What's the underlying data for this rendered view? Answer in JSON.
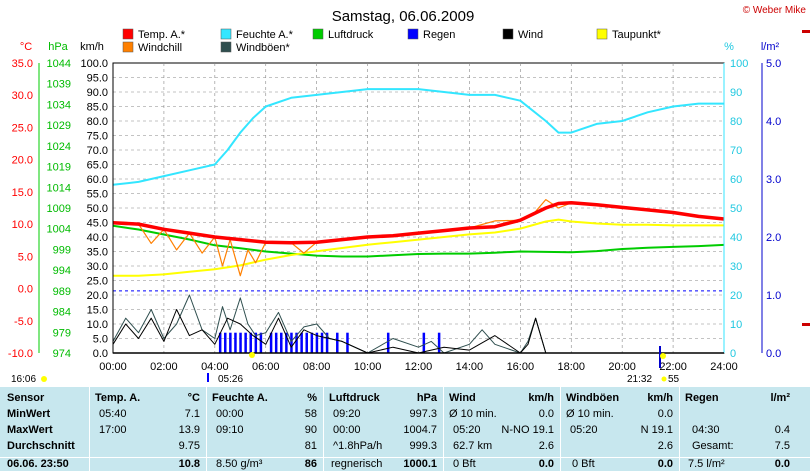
{
  "title": "Samstag, 06.06.2009",
  "copyright": "© Weber Mike",
  "colors": {
    "temp": "#ff0000",
    "windchill": "#ff8000",
    "humidity": "#33e6ff",
    "pressure": "#00cc00",
    "rain": "#0000ff",
    "wind": "#000000",
    "gust": "#2f4f4f",
    "dewpoint": "#ffff00",
    "grid": "#888888"
  },
  "chart_data": {
    "type": "line",
    "x_labels": [
      "00:00",
      "02:00",
      "04:00",
      "06:00",
      "08:00",
      "10:00",
      "12:00",
      "14:00",
      "16:00",
      "18:00",
      "20:00",
      "22:00",
      "24:00"
    ],
    "x_range": [
      0,
      24
    ],
    "axes": {
      "temp": {
        "label": "°C",
        "ticks": [
          "35.0",
          "30.0",
          "25.0",
          "20.0",
          "15.0",
          "10.0",
          "5.0",
          "0.0",
          "-5.0",
          "-10.0"
        ],
        "range": [
          -10,
          35
        ]
      },
      "pressure": {
        "label": "hPa",
        "ticks": [
          "1044",
          "1039",
          "1034",
          "1029",
          "1024",
          "1019",
          "1014",
          "1009",
          "1004",
          "999",
          "994",
          "989",
          "984",
          "979",
          "974"
        ],
        "range": [
          974,
          1044
        ]
      },
      "wind": {
        "label": "km/h",
        "ticks": [
          "100.0",
          "95.0",
          "90.0",
          "85.0",
          "80.0",
          "75.0",
          "70.0",
          "65.0",
          "60.0",
          "55.0",
          "50.0",
          "45.0",
          "40.0",
          "35.0",
          "30.0",
          "25.0",
          "20.0",
          "15.0",
          "10.0",
          "5.0",
          "0.0"
        ],
        "range": [
          0,
          100
        ]
      },
      "humidity": {
        "label": "%",
        "ticks": [
          "100",
          "90",
          "80",
          "70",
          "60",
          "50",
          "40",
          "30",
          "20",
          "10",
          "0"
        ],
        "range": [
          0,
          100
        ]
      },
      "rain": {
        "label": "l/m²",
        "ticks": [
          "5.0",
          "4.0",
          "3.0",
          "2.0",
          "1.0",
          "0.0"
        ],
        "range": [
          0,
          5
        ]
      }
    },
    "legend": [
      {
        "name": "Temp. A.*",
        "color": "#ff0000"
      },
      {
        "name": "Feuchte A.*",
        "color": "#33e6ff"
      },
      {
        "name": "Luftdruck",
        "color": "#00cc00"
      },
      {
        "name": "Regen",
        "color": "#0000ff"
      },
      {
        "name": "Wind",
        "color": "#000000"
      },
      {
        "name": "Taupunkt*",
        "color": "#ffff00"
      },
      {
        "name": "Windchill",
        "color": "#ff8000"
      },
      {
        "name": "Windböen*",
        "color": "#2f4f4f"
      }
    ],
    "series": [
      {
        "name": "Temp. A.*",
        "axis": "temp",
        "x": [
          0,
          1,
          2,
          3,
          4,
          5,
          6,
          7,
          8,
          9,
          10,
          11,
          12,
          13,
          14,
          15,
          16,
          17,
          17.5,
          18,
          19,
          20,
          21,
          22,
          23,
          24
        ],
        "y": [
          10.2,
          10.0,
          9.2,
          8.6,
          8.0,
          7.6,
          7.2,
          7.1,
          7.2,
          7.6,
          8.0,
          8.2,
          8.6,
          9.0,
          9.4,
          9.6,
          10.6,
          12.5,
          13.2,
          13.3,
          13.0,
          12.6,
          12.2,
          11.8,
          11.2,
          10.8
        ]
      },
      {
        "name": "Windchill",
        "axis": "temp",
        "x": [
          0,
          1,
          1.5,
          2,
          2.5,
          3,
          3.5,
          4,
          4.3,
          4.6,
          5,
          5.3,
          5.6,
          6,
          7,
          7.5,
          8,
          9,
          10,
          11,
          12,
          13,
          14,
          15,
          16,
          16.5,
          17,
          17.5,
          18,
          19,
          20,
          21,
          22,
          23,
          24
        ],
        "y": [
          10.2,
          10.0,
          7.0,
          9.2,
          6.0,
          8.6,
          5.5,
          8.0,
          3.5,
          7.6,
          2.0,
          6.0,
          4.0,
          7.2,
          7.1,
          5.5,
          7.2,
          7.6,
          8.0,
          8.2,
          8.6,
          9.0,
          9.4,
          10.5,
          10.6,
          11.5,
          13.8,
          12.5,
          13.3,
          13.0,
          12.6,
          12.2,
          11.8,
          11.2,
          10.8
        ]
      },
      {
        "name": "Feuchte A.*",
        "axis": "humidity",
        "x": [
          0,
          1,
          2,
          3,
          4,
          4.5,
          5,
          5.5,
          6,
          7,
          8,
          9,
          10,
          11,
          12,
          13,
          14,
          15,
          16,
          17,
          17.5,
          18,
          19,
          20,
          21,
          22,
          23,
          24
        ],
        "y": [
          58,
          59,
          61,
          63,
          65,
          70,
          76,
          81,
          85,
          88,
          89,
          90,
          91,
          91,
          91,
          90,
          89,
          89,
          87,
          80,
          76,
          76,
          79,
          80,
          83,
          85,
          86,
          86
        ]
      },
      {
        "name": "Luftdruck",
        "axis": "pressure",
        "x": [
          0,
          1,
          2,
          3,
          4,
          5,
          6,
          7,
          8,
          9,
          10,
          11,
          12,
          13,
          14,
          15,
          16,
          17,
          18,
          19,
          20,
          21,
          22,
          23,
          24
        ],
        "y": [
          1004.7,
          1003.8,
          1002.6,
          1001.4,
          1000.0,
          999.3,
          998.5,
          998.0,
          997.5,
          997.3,
          997.3,
          997.6,
          997.9,
          998.0,
          998.0,
          998.2,
          998.5,
          998.4,
          998.3,
          998.6,
          999.1,
          999.4,
          999.6,
          999.8,
          1000.1
        ]
      },
      {
        "name": "Taupunkt*",
        "axis": "temp",
        "x": [
          0,
          1,
          2,
          3,
          4,
          5,
          6,
          7,
          8,
          9,
          10,
          11,
          12,
          13,
          14,
          15,
          16,
          17,
          17.5,
          18,
          19,
          20,
          21,
          22,
          23,
          24
        ],
        "y": [
          2.0,
          2.0,
          2.2,
          2.6,
          3.0,
          3.6,
          4.5,
          5.2,
          5.8,
          6.3,
          6.8,
          7.2,
          7.6,
          8.0,
          8.4,
          8.7,
          9.3,
          10.4,
          10.7,
          10.4,
          10.1,
          9.9,
          9.9,
          9.8,
          9.8,
          9.8
        ]
      },
      {
        "name": "Wind",
        "axis": "wind",
        "x": [
          0,
          0.5,
          1,
          1.5,
          2,
          2.5,
          3,
          3.5,
          4,
          4.5,
          5,
          5.5,
          6,
          6.5,
          7,
          7.5,
          8,
          9,
          10,
          11,
          12,
          13,
          14,
          15,
          16,
          16.3,
          16.6,
          17,
          18,
          20,
          22,
          24
        ],
        "y": [
          3,
          10,
          5,
          12,
          4,
          15,
          6,
          8,
          3,
          12,
          10,
          6,
          3,
          12,
          2,
          8,
          6,
          4,
          0,
          2,
          0,
          2,
          1,
          6,
          0,
          3,
          12,
          0,
          0,
          0,
          0,
          0
        ]
      },
      {
        "name": "Windböen*",
        "axis": "wind",
        "x": [
          0,
          0.5,
          1,
          1.5,
          2,
          2.5,
          3,
          3.5,
          4,
          4.3,
          4.6,
          5,
          5.3,
          5.6,
          6,
          6.5,
          7,
          7.5,
          8,
          8.5,
          9,
          10,
          11,
          12,
          12.5,
          13,
          14,
          14.5,
          15,
          16,
          16.3,
          16.6,
          17,
          18,
          20,
          22,
          24
        ],
        "y": [
          4,
          12,
          7,
          15,
          5,
          10,
          20,
          8,
          5,
          16,
          8,
          19,
          10,
          6,
          7,
          14,
          4,
          9,
          10,
          5,
          4,
          0,
          5,
          2,
          4,
          0,
          3,
          8,
          3,
          0,
          4,
          12,
          0,
          0,
          0,
          0,
          0
        ]
      }
    ],
    "rain_bars_x": [
      4.2,
      4.4,
      4.6,
      4.8,
      5.0,
      5.2,
      5.4,
      5.6,
      5.8,
      6.2,
      6.4,
      6.6,
      6.8,
      7.0,
      7.2,
      7.4,
      7.6,
      7.8,
      8.0,
      8.2,
      8.4,
      8.8,
      9.2,
      10.8,
      12.2,
      12.8
    ],
    "rain_bar_height": 7,
    "dashed_reference": 989,
    "below_axis_labels": {
      "left_time": "16:06",
      "sunrise": "05:26",
      "sunset": "21:32",
      "tail": "55"
    }
  },
  "stats": {
    "header": {
      "sensor": "Sensor",
      "temp": "Temp. A.",
      "temp_unit": "°C",
      "hum": "Feuchte A.",
      "hum_unit": "%",
      "press": "Luftdruck",
      "press_unit": "hPa",
      "wind": "Wind",
      "wind_unit": "km/h",
      "gust": "Windböen",
      "gust_unit": "km/h",
      "rain": "Regen",
      "rain_unit": "l/m²"
    },
    "rows": [
      {
        "label": "MinWert",
        "temp_time": "05:40",
        "temp": "7.1",
        "hum_time": "00:00",
        "hum": "58",
        "press_time": "09:20",
        "press": "997.3",
        "wind_desc": "Ø 10 min.",
        "wind": "0.0",
        "gust_desc": "Ø 10 min.",
        "gust": "0.0",
        "rain_time": "",
        "rain": ""
      },
      {
        "label": "MaxWert",
        "temp_time": "17:00",
        "temp": "13.9",
        "hum_time": "09:10",
        "hum": "90",
        "press_time": "00:00",
        "press": "1004.7",
        "wind_desc": "05:20",
        "wind_dir": "N-NO 19.1",
        "wind": "",
        "gust_desc": "05:20",
        "gust_dir": "N 19.1",
        "gust": "",
        "rain_time": "04:30",
        "rain": "0.4"
      },
      {
        "label": "Durchschnitt",
        "temp_time": "",
        "temp": "9.75",
        "hum_time": "",
        "hum": "81",
        "press_time": "^1.8hPa/h",
        "press": "999.3",
        "wind_desc": "62.7 km",
        "wind": "2.6",
        "gust_desc": "",
        "gust": "2.6",
        "rain_time": "Gesamt:",
        "rain": "7.5"
      },
      {
        "label": "06.06. 23:50",
        "temp_time": "",
        "temp": "10.8",
        "hum_time": "8.50 g/m³",
        "hum": "86",
        "press_time": "regnerisch",
        "press": "1000.1",
        "wind_desc": "0 Bft",
        "wind": "0.0",
        "gust_desc": "0 Bft",
        "gust": "0.0",
        "rain_time": "7.5 l/m²",
        "rain": "0.0"
      }
    ]
  }
}
